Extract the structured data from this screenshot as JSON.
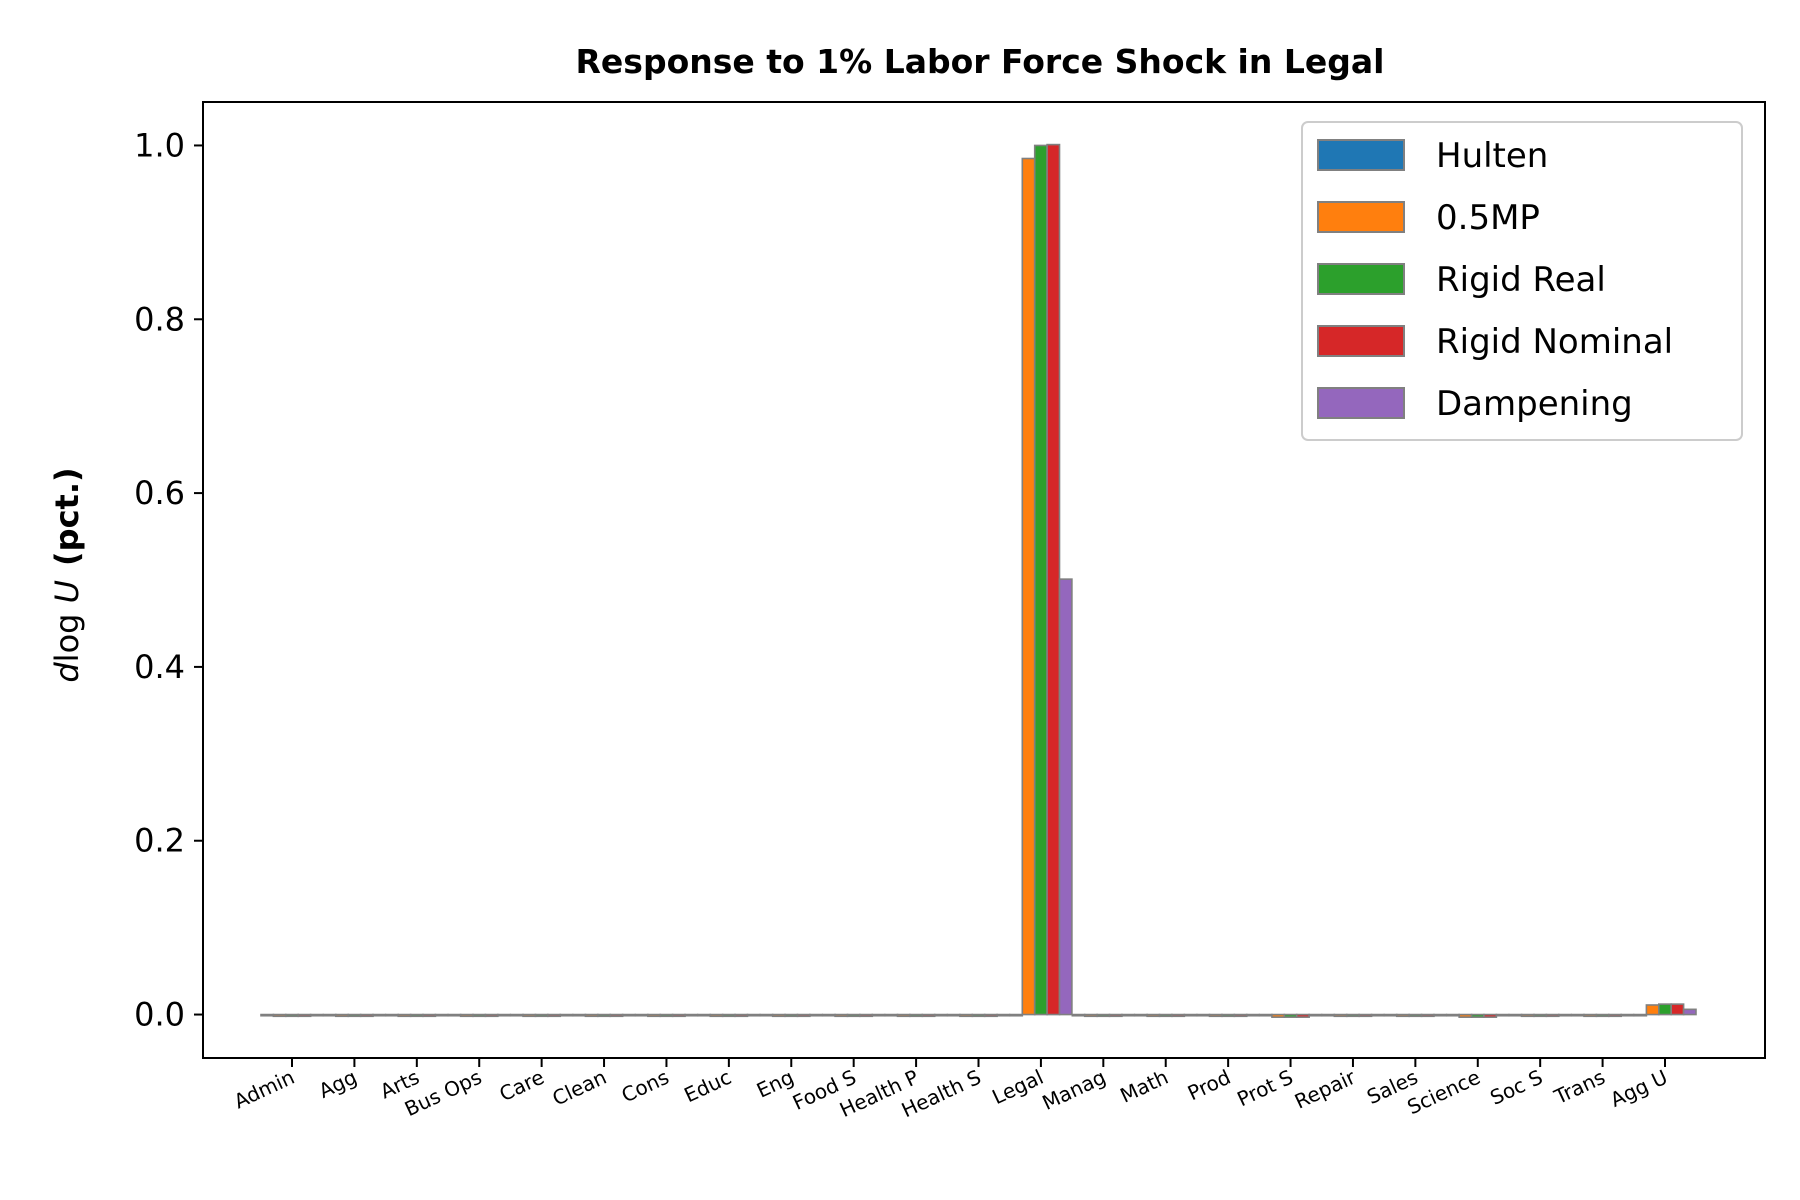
{
  "chart_data": {
    "type": "bar",
    "title": "Response to 1% Labor Force Shock in Legal",
    "ylabel": "d log U  (pct.)",
    "ylabel_math": "dlog U",
    "ylabel_unit": "(pct.)",
    "xlabel": "",
    "ylim": [
      -0.05,
      1.05
    ],
    "yticks": [
      0.0,
      0.2,
      0.4,
      0.6,
      0.8,
      1.0
    ],
    "ytick_labels": [
      "0.0",
      "0.2",
      "0.4",
      "0.6",
      "0.8",
      "1.0"
    ],
    "grid": false,
    "legend_position": "top-right",
    "categories": [
      "Admin",
      "Agg",
      "Arts",
      "Bus Ops",
      "Care",
      "Clean",
      "Cons",
      "Educ",
      "Eng",
      "Food S",
      "Health P",
      "Health S",
      "Legal",
      "Manag",
      "Math",
      "Prod",
      "Prot S",
      "Repair",
      "Sales",
      "Science",
      "Soc S",
      "Trans",
      "Agg U"
    ],
    "series": [
      {
        "name": "Hulten",
        "color": "#1f77b4",
        "values": [
          0,
          0,
          0,
          0,
          0,
          0,
          0,
          0,
          0,
          0,
          0,
          0,
          0,
          0,
          0,
          0,
          0,
          0,
          0,
          0,
          0,
          0,
          0
        ]
      },
      {
        "name": "0.5MP",
        "color": "#ff7f0e",
        "values": [
          -0.002,
          -0.002,
          -0.002,
          -0.002,
          -0.002,
          -0.002,
          -0.002,
          -0.002,
          -0.002,
          -0.002,
          -0.002,
          -0.002,
          0.985,
          -0.002,
          -0.002,
          -0.002,
          -0.003,
          -0.002,
          -0.002,
          -0.003,
          -0.002,
          -0.002,
          0.011
        ]
      },
      {
        "name": "Rigid Real",
        "color": "#2ca02c",
        "values": [
          -0.002,
          -0.002,
          -0.002,
          -0.002,
          -0.002,
          -0.002,
          -0.002,
          -0.002,
          -0.002,
          -0.002,
          -0.002,
          -0.002,
          1.0,
          -0.002,
          -0.002,
          -0.002,
          -0.003,
          -0.002,
          -0.002,
          -0.003,
          -0.002,
          -0.002,
          0.012
        ]
      },
      {
        "name": "Rigid Nominal",
        "color": "#d62728",
        "values": [
          -0.002,
          -0.002,
          -0.002,
          -0.002,
          -0.002,
          -0.002,
          -0.002,
          -0.002,
          -0.002,
          -0.002,
          -0.002,
          -0.002,
          1.001,
          -0.002,
          -0.002,
          -0.002,
          -0.003,
          -0.002,
          -0.002,
          -0.003,
          -0.002,
          -0.002,
          0.012
        ]
      },
      {
        "name": "Dampening",
        "color": "#9467bd",
        "values": [
          -0.001,
          -0.001,
          -0.001,
          -0.001,
          -0.001,
          -0.001,
          -0.001,
          -0.001,
          -0.001,
          -0.001,
          -0.001,
          -0.001,
          0.501,
          -0.001,
          -0.001,
          -0.001,
          -0.001,
          -0.001,
          -0.001,
          -0.001,
          -0.001,
          -0.001,
          0.006
        ]
      }
    ]
  }
}
